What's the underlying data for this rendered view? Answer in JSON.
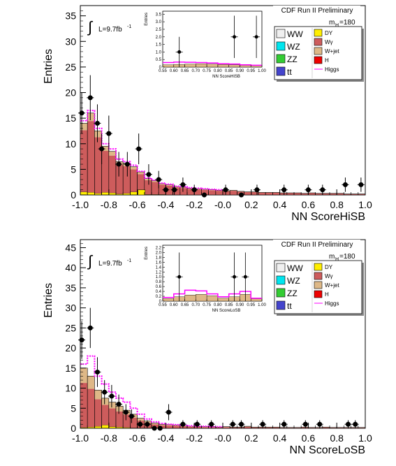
{
  "chart_data": [
    {
      "type": "histogram",
      "header": "CDF Run II Preliminary",
      "xlabel": "NN ScoreHiSB",
      "ylabel": "Entries",
      "luminosity_label": "L=9.7fb",
      "luminosity_superscript": "-1",
      "mass_label": "m",
      "mass_subscript": "H",
      "mass_value": "=180",
      "xlim": [
        -1.0,
        1.0
      ],
      "ylim": [
        0,
        37
      ],
      "x_ticks": [
        "-1.0",
        "-0.8",
        "-0.6",
        "-0.4",
        "-0.2",
        "-0.0",
        "0.2",
        "0.4",
        "0.6",
        "0.8",
        "1.0"
      ],
      "y_ticks": [
        "0",
        "5",
        "10",
        "15",
        "20",
        "25",
        "30",
        "35"
      ],
      "bin_edges_start": -1.0,
      "bin_width": 0.05,
      "legend": {
        "left": [
          "WW",
          "WZ",
          "ZZ",
          "tt"
        ],
        "right": [
          "DY",
          "Wγ",
          "W+jet",
          "H",
          "Higgs"
        ],
        "colors": {
          "WW": "#f0f0f0",
          "WZ": "#00e5ee",
          "ZZ": "#33cc33",
          "tt": "#4444cc",
          "DY": "#ffee00",
          "Wγ": "#cd5c5c",
          "W+jet": "#deb887",
          "H": "#ee0000",
          "Higgs": "#ff00ff"
        }
      },
      "stack_total": [
        14,
        16,
        12.5,
        9.5,
        8.5,
        6.5,
        6.2,
        5.5,
        4.5,
        3.2,
        2.8,
        2.2,
        2.0,
        1.6,
        1.5,
        1.3,
        1.2,
        1.1,
        1.0,
        0.9,
        0.8,
        0.9,
        0.7,
        0.6,
        0.6,
        0.5,
        0.5,
        0.5,
        0.4,
        0.4,
        0.4,
        0.3,
        0.4,
        0.3,
        0.3,
        0.3,
        0.3,
        0.2,
        0.2,
        0.2
      ],
      "wgamma_frac": 0.9,
      "dy_values": [
        0.6,
        0.5,
        0.3,
        0.5,
        0.4,
        0.2,
        0.3,
        0.6,
        0.2,
        0.1,
        0.1,
        0.1,
        0.0,
        0.0,
        0.0,
        0.0,
        0.0,
        0.0,
        0.0,
        0.0,
        0.0,
        0.0,
        0.0,
        0.0,
        0.0,
        0.0,
        0.0,
        0.0,
        0.0,
        0.0,
        0.0,
        0.0,
        0.0,
        0.0,
        0.0,
        0.0,
        0.0,
        0.0,
        0.0,
        0.0
      ],
      "dy_highlight": [
        {
          "x": -0.57,
          "y": 1.0
        }
      ],
      "higgs_signal": [
        14.5,
        16.5,
        13,
        10,
        9,
        7,
        6.5,
        5.8,
        4.6,
        3.3,
        2.9,
        2.3,
        2.1,
        1.7,
        1.6,
        1.4,
        1.3,
        1.2,
        1.1,
        1.0
      ],
      "data_points": [
        {
          "x": -0.99,
          "y": 16,
          "err": 4
        },
        {
          "x": -0.93,
          "y": 19,
          "err": 4.4
        },
        {
          "x": -0.88,
          "y": 14,
          "err": 3.7
        },
        {
          "x": -0.85,
          "y": 9,
          "err": 3
        },
        {
          "x": -0.8,
          "y": 12,
          "err": 3.5
        },
        {
          "x": -0.73,
          "y": 6,
          "err": 2.4
        },
        {
          "x": -0.67,
          "y": 6,
          "err": 2.4
        },
        {
          "x": -0.59,
          "y": 9,
          "err": 3
        },
        {
          "x": -0.52,
          "y": 4,
          "err": 2
        },
        {
          "x": -0.45,
          "y": 3,
          "err": 1.7
        },
        {
          "x": -0.4,
          "y": 1,
          "err": 1
        },
        {
          "x": -0.34,
          "y": 1,
          "err": 1
        },
        {
          "x": -0.28,
          "y": 2,
          "err": 1.4
        },
        {
          "x": -0.2,
          "y": 1,
          "err": 1
        },
        {
          "x": -0.13,
          "y": 0,
          "err": 0
        },
        {
          "x": 0.02,
          "y": 1,
          "err": 1
        },
        {
          "x": 0.13,
          "y": 0,
          "err": 0
        },
        {
          "x": 0.24,
          "y": 1,
          "err": 1
        },
        {
          "x": 0.43,
          "y": 1,
          "err": 1
        },
        {
          "x": 0.6,
          "y": 1,
          "err": 1
        },
        {
          "x": 0.7,
          "y": 1,
          "err": 1
        },
        {
          "x": 0.86,
          "y": 2,
          "err": 1.4
        },
        {
          "x": 0.97,
          "y": 2,
          "err": 1.4
        }
      ],
      "inset": {
        "xlabel": "NN ScoreHiSB",
        "ylabel": "Entries",
        "xlim": [
          0.55,
          1.0
        ],
        "ylim": [
          0,
          3.7
        ],
        "x_ticks": [
          "0.55",
          "0.60",
          "0.65",
          "0.70",
          "0.75",
          "0.80",
          "0.85",
          "0.90",
          "0.95",
          "1.00"
        ],
        "y_ticks": [
          "0",
          "0.5",
          "1.0",
          "1.5",
          "2.0",
          "2.5",
          "3.0",
          "3.5"
        ],
        "stack": [
          0.15,
          0.18,
          0.2,
          0.22,
          0.2,
          0.17,
          0.15,
          0.12,
          0.1
        ],
        "signal": [
          0.3,
          0.33,
          0.32,
          0.3,
          0.27,
          0.22,
          0.2,
          0.15,
          0.12
        ],
        "data_points": [
          {
            "x": 0.625,
            "y": 1,
            "err": 1
          },
          {
            "x": 0.875,
            "y": 2,
            "err": 1.4
          },
          {
            "x": 0.975,
            "y": 2,
            "err": 1.4
          }
        ]
      }
    },
    {
      "type": "histogram",
      "header": "CDF Run II Preliminary",
      "xlabel": "NN ScoreLoSB",
      "ylabel": "Entries",
      "luminosity_label": "L=9.7fb",
      "luminosity_superscript": "-1",
      "mass_label": "m",
      "mass_subscript": "H",
      "mass_value": "=180",
      "xlim": [
        -1.0,
        1.0
      ],
      "ylim": [
        0,
        47
      ],
      "x_ticks": [
        "-1.0",
        "-0.8",
        "-0.6",
        "-0.4",
        "-0.2",
        "-0.0",
        "0.2",
        "0.4",
        "0.6",
        "0.8",
        "1.0"
      ],
      "y_ticks": [
        "0",
        "5",
        "10",
        "15",
        "20",
        "25",
        "30",
        "35",
        "40",
        "45"
      ],
      "bin_edges_start": -1.0,
      "bin_width": 0.05,
      "legend": {
        "left": [
          "WW",
          "WZ",
          "ZZ",
          "tt"
        ],
        "right": [
          "DY",
          "Wγ",
          "W+jet",
          "H",
          "Higgs"
        ],
        "colors": {
          "WW": "#f0f0f0",
          "WZ": "#00e5ee",
          "ZZ": "#33cc33",
          "tt": "#4444cc",
          "DY": "#ffee00",
          "Wγ": "#cd5c5c",
          "W+jet": "#deb887",
          "H": "#ee0000",
          "Higgs": "#ff00ff"
        }
      },
      "stack_total": [
        15,
        13,
        9.5,
        7.5,
        6.5,
        5.5,
        4.5,
        3.5,
        2.5,
        1.8,
        1.3,
        1.0,
        0.9,
        0.8,
        0.6,
        0.5,
        0.5,
        0.4,
        0.4,
        0.3,
        0.4,
        0.3,
        0.3,
        0.5,
        0.3,
        0.3,
        0.3,
        0.3,
        0.2,
        0.2,
        0.2,
        0.3,
        0.2,
        0.2,
        0.3,
        0.2,
        0.2,
        0.2,
        0.2,
        0.2
      ],
      "wgamma_frac": 0.75,
      "dy_values": [
        0.2,
        0.3,
        0.5,
        0.8,
        0.4,
        0.3,
        0.2,
        0.1,
        0.1,
        0.1,
        0.0,
        0.0,
        0.0,
        0.0,
        0.0,
        0.0,
        0.0,
        0.0,
        0.0,
        0.0,
        0.0,
        0.0,
        0.0,
        0.0,
        0.0,
        0.0,
        0.0,
        0.0,
        0.0,
        0.0,
        0.0,
        0.0,
        0.0,
        0.0,
        0.0,
        0.0,
        0.0,
        0.0,
        0.0,
        0.0
      ],
      "dy_highlight": [],
      "higgs_signal": [
        16,
        18,
        13,
        11,
        9,
        7.5,
        6.5,
        5,
        3.5,
        2.3,
        1.6,
        1.2,
        1.0,
        0.9,
        0.7,
        0.6,
        0.5,
        0.5,
        0.4,
        0.4
      ],
      "data_points": [
        {
          "x": -0.99,
          "y": 22,
          "err": 4.7
        },
        {
          "x": -0.93,
          "y": 25,
          "err": 5
        },
        {
          "x": -0.88,
          "y": 14,
          "err": 3.7
        },
        {
          "x": -0.83,
          "y": 9,
          "err": 3
        },
        {
          "x": -0.78,
          "y": 8,
          "err": 2.8
        },
        {
          "x": -0.73,
          "y": 6,
          "err": 2.4
        },
        {
          "x": -0.68,
          "y": 4,
          "err": 2
        },
        {
          "x": -0.64,
          "y": 3,
          "err": 1.7
        },
        {
          "x": -0.58,
          "y": 1,
          "err": 1
        },
        {
          "x": -0.53,
          "y": 1,
          "err": 1
        },
        {
          "x": -0.48,
          "y": 0,
          "err": 0
        },
        {
          "x": -0.44,
          "y": 0,
          "err": 0
        },
        {
          "x": -0.38,
          "y": 4,
          "err": 2
        },
        {
          "x": -0.28,
          "y": 1,
          "err": 1
        },
        {
          "x": -0.18,
          "y": 1,
          "err": 1
        },
        {
          "x": -0.08,
          "y": 1,
          "err": 1
        },
        {
          "x": 0.07,
          "y": 1,
          "err": 1
        },
        {
          "x": 0.13,
          "y": 1,
          "err": 1
        },
        {
          "x": 0.28,
          "y": 1,
          "err": 1
        },
        {
          "x": 0.43,
          "y": 1,
          "err": 1
        },
        {
          "x": 0.58,
          "y": 1,
          "err": 1
        },
        {
          "x": 0.68,
          "y": 1,
          "err": 1
        },
        {
          "x": 0.88,
          "y": 1,
          "err": 1
        },
        {
          "x": 0.93,
          "y": 1,
          "err": 1
        }
      ],
      "inset": {
        "xlabel": "NN ScoreLoSB",
        "ylabel": "Entries",
        "xlim": [
          0.55,
          1.0
        ],
        "ylim": [
          0,
          2.3
        ],
        "x_ticks": [
          "0.55",
          "0.60",
          "0.65",
          "0.70",
          "0.75",
          "0.80",
          "0.85",
          "0.90",
          "0.95",
          "1.00"
        ],
        "y_ticks": [
          "0",
          "0.2",
          "0.4",
          "0.6",
          "0.8",
          "1.0",
          "1.2",
          "1.4",
          "1.6",
          "1.8",
          "2.0",
          "2.2"
        ],
        "stack": [
          0.1,
          0.18,
          0.25,
          0.28,
          0.22,
          0.12,
          0.18,
          0.28,
          0.1
        ],
        "signal": [
          0.15,
          0.3,
          0.45,
          0.42,
          0.3,
          0.18,
          0.3,
          0.4,
          0.12
        ],
        "data_points": [
          {
            "x": 0.625,
            "y": 1,
            "err": 1
          },
          {
            "x": 0.875,
            "y": 1,
            "err": 1
          },
          {
            "x": 0.925,
            "y": 1,
            "err": 1
          }
        ]
      }
    }
  ]
}
